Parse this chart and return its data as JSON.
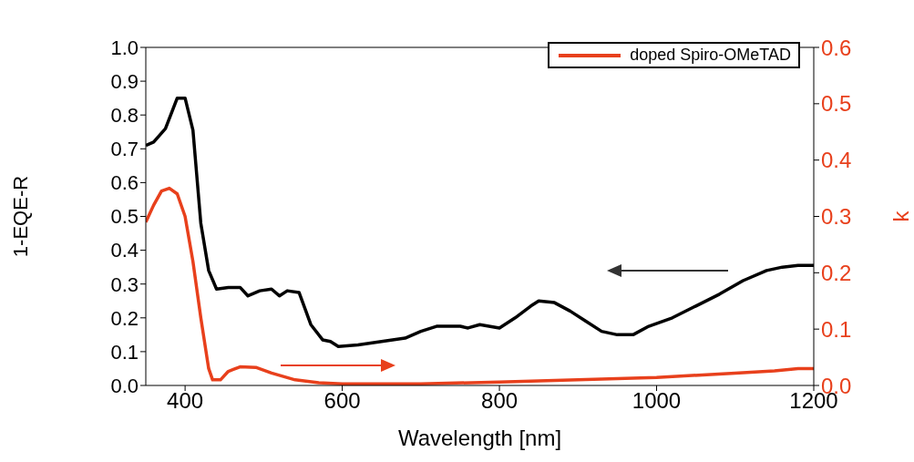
{
  "chart_data": {
    "type": "line",
    "xlabel": "Wavelength [nm]",
    "ylabel": "1-EQE-R",
    "y2label": "k",
    "xlim": [
      350,
      1200
    ],
    "xticks": [
      400,
      600,
      800,
      1000,
      1200
    ],
    "ylim": [
      0,
      1
    ],
    "yticks": [
      {
        "value": 0,
        "label": "0.0"
      },
      {
        "value": 0.1,
        "label": "0.1"
      },
      {
        "value": 0.2,
        "label": "0.2"
      },
      {
        "value": 0.3,
        "label": "0.3"
      },
      {
        "value": 0.4,
        "label": "0.4"
      },
      {
        "value": 0.5,
        "label": "0.5"
      },
      {
        "value": 0.6,
        "label": "0.6"
      },
      {
        "value": 0.7,
        "label": "0.7"
      },
      {
        "value": 0.8,
        "label": "0.8"
      },
      {
        "value": 0.9,
        "label": "0.9"
      },
      {
        "value": 1,
        "label": "1.0"
      }
    ],
    "y2lim": [
      0,
      0.6
    ],
    "y2ticks": [
      {
        "value": 0,
        "label": "0.0"
      },
      {
        "value": 0.1,
        "label": "0.1"
      },
      {
        "value": 0.2,
        "label": "0.2"
      },
      {
        "value": 0.3,
        "label": "0.3"
      },
      {
        "value": 0.4,
        "label": "0.4"
      },
      {
        "value": 0.5,
        "label": "0.5"
      },
      {
        "value": 0.6,
        "label": "0.6"
      }
    ],
    "legend": "top right",
    "marker": "none",
    "line_style": "solid",
    "series": [
      {
        "color": "#000000",
        "x": [
          350,
          360,
          375,
          390,
          400,
          410,
          420,
          430,
          440,
          455,
          470,
          480,
          495,
          510,
          520,
          530,
          545,
          560,
          575,
          585,
          595,
          620,
          650,
          680,
          700,
          720,
          750,
          760,
          775,
          800,
          820,
          840,
          850,
          870,
          890,
          910,
          930,
          950,
          970,
          990,
          1020,
          1050,
          1080,
          1110,
          1140,
          1160,
          1180,
          1200
        ],
        "values": [
          0.71,
          0.72,
          0.76,
          0.85,
          0.85,
          0.755,
          0.48,
          0.34,
          0.285,
          0.29,
          0.29,
          0.265,
          0.28,
          0.285,
          0.265,
          0.28,
          0.275,
          0.18,
          0.135,
          0.13,
          0.115,
          0.12,
          0.13,
          0.14,
          0.16,
          0.175,
          0.175,
          0.17,
          0.18,
          0.17,
          0.2,
          0.235,
          0.25,
          0.245,
          0.22,
          0.19,
          0.16,
          0.15,
          0.15,
          0.175,
          0.2,
          0.235,
          0.27,
          0.31,
          0.34,
          0.35,
          0.355,
          0.355
        ]
      },
      {
        "name": "doped Spiro-OMeTAD",
        "color": "#e8401c",
        "axis": "y2",
        "x": [
          350,
          360,
          370,
          380,
          390,
          400,
          410,
          420,
          430,
          435,
          445,
          455,
          470,
          490,
          510,
          540,
          570,
          600,
          700,
          800,
          900,
          1000,
          1100,
          1150,
          1180,
          1200
        ],
        "values": [
          0.29,
          0.32,
          0.345,
          0.35,
          0.34,
          0.3,
          0.22,
          0.12,
          0.03,
          0.01,
          0.01,
          0.025,
          0.033,
          0.032,
          0.022,
          0.01,
          0.005,
          0.003,
          0.003,
          0.006,
          0.01,
          0.014,
          0.022,
          0.026,
          0.03,
          0.03
        ]
      }
    ]
  }
}
